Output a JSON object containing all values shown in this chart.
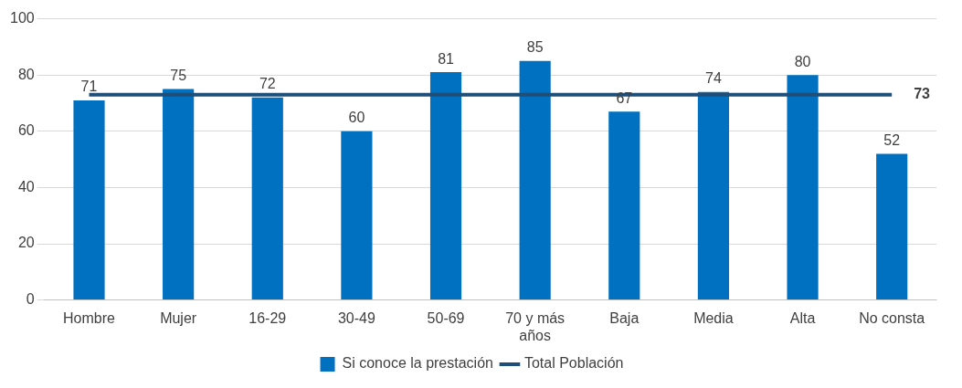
{
  "chart_data": {
    "type": "bar",
    "categories": [
      "Hombre",
      "Mujer",
      "16-29",
      "30-49",
      "50-69",
      "70 y más años",
      "Baja",
      "Media",
      "Alta",
      "No consta"
    ],
    "series": [
      {
        "name": "Si conoce la prestación",
        "color": "#0070c0",
        "values": [
          71,
          75,
          72,
          60,
          81,
          85,
          67,
          74,
          80,
          52
        ],
        "value_labels": [
          "71",
          "75",
          "72",
          "60",
          "81",
          "85",
          "67",
          "74",
          "80",
          "52"
        ]
      },
      {
        "name": "Total Población",
        "type": "line",
        "color": "#1f4e79",
        "values": [
          73,
          73,
          73,
          73,
          73,
          73,
          73,
          73,
          73,
          73
        ],
        "value_labels": [
          null,
          null,
          null,
          null,
          null,
          null,
          null,
          null,
          null,
          "73"
        ]
      }
    ],
    "ylim": [
      0,
      100
    ],
    "yticks": [
      0,
      20,
      40,
      60,
      80,
      100
    ],
    "grid": "y",
    "legend": "bottom",
    "marker": "none"
  }
}
